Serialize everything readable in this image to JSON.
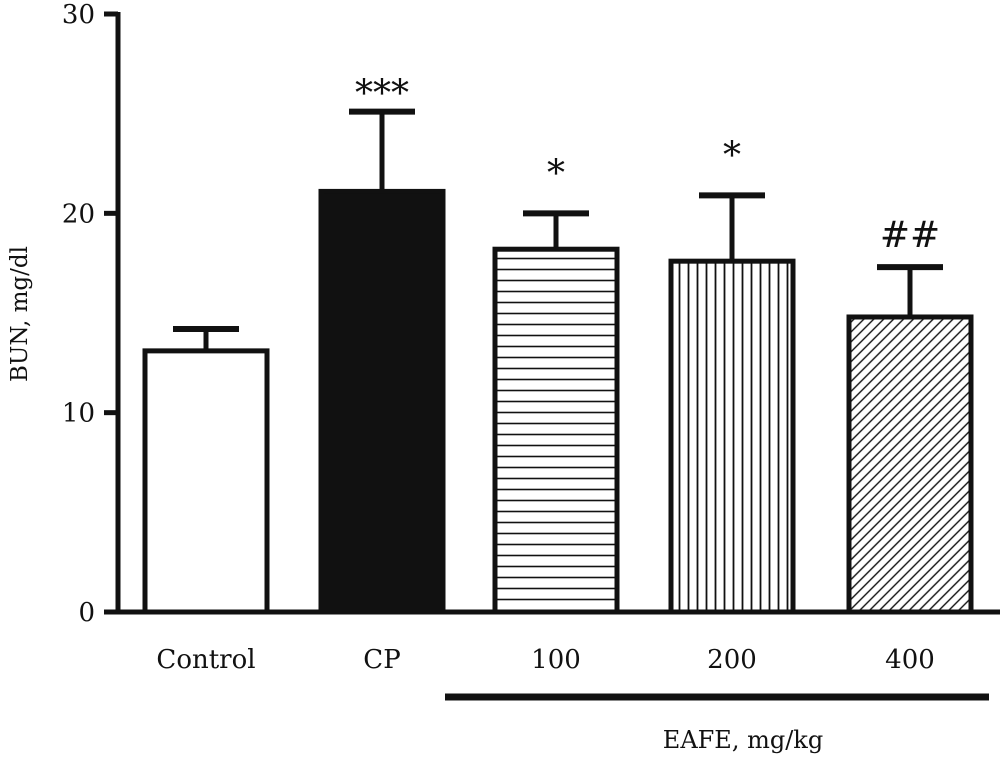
{
  "chart_data": {
    "type": "bar",
    "title": "",
    "ylabel": "BUN, mg/dl",
    "xlabel": "",
    "ylim": [
      0,
      30
    ],
    "yticks": [
      0,
      10,
      20,
      30
    ],
    "grid": false,
    "bars": [
      {
        "category": "Control",
        "value": 13.1,
        "error": 1.1,
        "annotation": "",
        "fill": "white"
      },
      {
        "category": "CP",
        "value": 21.1,
        "error": 4.0,
        "annotation": "***",
        "fill": "black"
      },
      {
        "category": "100",
        "value": 18.2,
        "error": 1.8,
        "annotation": "*",
        "fill": "horizontal-lines"
      },
      {
        "category": "200",
        "value": 17.6,
        "error": 3.3,
        "annotation": "*",
        "fill": "vertical-lines"
      },
      {
        "category": "400",
        "value": 14.8,
        "error": 2.5,
        "annotation": "##",
        "fill": "diagonal-lines"
      }
    ],
    "group_bracket": {
      "label": "EAFE, mg/kg",
      "categories": [
        "100",
        "200",
        "400"
      ]
    }
  },
  "colors": {
    "ink": "#111111",
    "background": "#ffffff"
  }
}
